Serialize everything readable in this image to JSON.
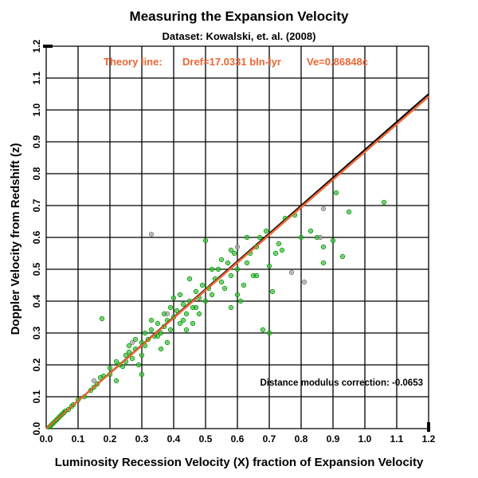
{
  "chart_data": {
    "type": "scatter",
    "title": "Measuring the Expansion Velocity",
    "subtitle": "Dataset:  Kowalski, et. al. (2008)",
    "xlabel": "Luminosity Recession Velocity (X) fraction of Expansion Velocity",
    "ylabel": "Doppler Velocity from Redshift (z)",
    "xlim": [
      0,
      1.2
    ],
    "ylim": [
      0,
      1.2
    ],
    "grid": true,
    "x_ticks": [
      "0.0",
      "0.1",
      "0.2",
      "0.3",
      "0.4",
      "0.5",
      "0.6",
      "0.7",
      "0.8",
      "0.9",
      "1.0",
      "1.1",
      "1.2"
    ],
    "y_ticks": [
      "0.0",
      "0.1",
      "0.2",
      "0.3",
      "0.4",
      "0.5",
      "0.6",
      "0.7",
      "0.8",
      "0.9",
      "1.0",
      "1.1",
      "1.2"
    ],
    "annotations": {
      "theory_label": "Theory line:",
      "dref": "Dref=17.0331 bln-lyr",
      "ve": "Ve=0.86848c",
      "correction": "Distance modulus correction:  -0.0653"
    },
    "lines": [
      {
        "name": "reference",
        "color": "#000000",
        "points": [
          [
            0,
            0
          ],
          [
            1.2,
            1.05
          ]
        ]
      },
      {
        "name": "theory",
        "color": "#ee6633",
        "points": [
          [
            0,
            0
          ],
          [
            1.2,
            1.042
          ]
        ]
      }
    ],
    "series": [
      {
        "name": "green",
        "color": "#00a000",
        "points": [
          [
            0.01,
            0.005
          ],
          [
            0.015,
            0.01
          ],
          [
            0.02,
            0.015
          ],
          [
            0.025,
            0.02
          ],
          [
            0.03,
            0.025
          ],
          [
            0.035,
            0.03
          ],
          [
            0.04,
            0.035
          ],
          [
            0.045,
            0.04
          ],
          [
            0.05,
            0.045
          ],
          [
            0.055,
            0.05
          ],
          [
            0.06,
            0.055
          ],
          [
            0.07,
            0.06
          ],
          [
            0.08,
            0.07
          ],
          [
            0.085,
            0.075
          ],
          [
            0.1,
            0.09
          ],
          [
            0.12,
            0.1
          ],
          [
            0.14,
            0.12
          ],
          [
            0.15,
            0.13
          ],
          [
            0.16,
            0.14
          ],
          [
            0.17,
            0.16
          ],
          [
            0.18,
            0.165
          ],
          [
            0.175,
            0.345
          ],
          [
            0.2,
            0.17
          ],
          [
            0.22,
            0.15
          ],
          [
            0.23,
            0.2
          ],
          [
            0.24,
            0.195
          ],
          [
            0.25,
            0.21
          ],
          [
            0.26,
            0.24
          ],
          [
            0.27,
            0.22
          ],
          [
            0.28,
            0.25
          ],
          [
            0.29,
            0.2
          ],
          [
            0.3,
            0.17
          ],
          [
            0.3,
            0.27
          ],
          [
            0.31,
            0.3
          ],
          [
            0.32,
            0.28
          ],
          [
            0.33,
            0.31
          ],
          [
            0.34,
            0.29
          ],
          [
            0.35,
            0.33
          ],
          [
            0.36,
            0.3
          ],
          [
            0.37,
            0.32
          ],
          [
            0.38,
            0.34
          ],
          [
            0.36,
            0.25
          ],
          [
            0.38,
            0.27
          ],
          [
            0.39,
            0.38
          ],
          [
            0.4,
            0.35
          ],
          [
            0.41,
            0.37
          ],
          [
            0.42,
            0.33
          ],
          [
            0.43,
            0.39
          ],
          [
            0.44,
            0.36
          ],
          [
            0.45,
            0.4
          ],
          [
            0.46,
            0.38
          ],
          [
            0.47,
            0.43
          ],
          [
            0.48,
            0.41
          ],
          [
            0.49,
            0.45
          ],
          [
            0.5,
            0.4
          ],
          [
            0.51,
            0.44
          ],
          [
            0.52,
            0.42
          ],
          [
            0.53,
            0.47
          ],
          [
            0.54,
            0.5
          ],
          [
            0.55,
            0.46
          ],
          [
            0.56,
            0.44
          ],
          [
            0.57,
            0.52
          ],
          [
            0.58,
            0.48
          ],
          [
            0.59,
            0.55
          ],
          [
            0.6,
            0.5
          ],
          [
            0.61,
            0.4
          ],
          [
            0.62,
            0.45
          ],
          [
            0.63,
            0.52
          ],
          [
            0.64,
            0.55
          ],
          [
            0.65,
            0.48
          ],
          [
            0.66,
            0.57
          ],
          [
            0.67,
            0.6
          ],
          [
            0.68,
            0.31
          ],
          [
            0.7,
            0.3
          ],
          [
            0.71,
            0.43
          ],
          [
            0.72,
            0.55
          ],
          [
            0.73,
            0.58
          ],
          [
            0.74,
            0.56
          ],
          [
            0.78,
            0.67
          ],
          [
            0.8,
            0.6
          ],
          [
            0.83,
            0.62
          ],
          [
            0.85,
            0.6
          ],
          [
            0.87,
            0.57
          ],
          [
            0.87,
            0.52
          ],
          [
            0.9,
            0.59
          ],
          [
            0.91,
            0.74
          ],
          [
            0.93,
            0.54
          ],
          [
            0.95,
            0.68
          ],
          [
            1.06,
            0.71
          ],
          [
            0.5,
            0.59
          ],
          [
            0.45,
            0.47
          ],
          [
            0.4,
            0.41
          ],
          [
            0.35,
            0.29
          ],
          [
            0.42,
            0.42
          ],
          [
            0.44,
            0.31
          ],
          [
            0.48,
            0.36
          ],
          [
            0.3,
            0.23
          ],
          [
            0.25,
            0.23
          ],
          [
            0.2,
            0.19
          ],
          [
            0.22,
            0.21
          ],
          [
            0.33,
            0.34
          ],
          [
            0.37,
            0.36
          ],
          [
            0.43,
            0.34
          ],
          [
            0.47,
            0.38
          ],
          [
            0.52,
            0.5
          ],
          [
            0.55,
            0.53
          ],
          [
            0.58,
            0.56
          ],
          [
            0.63,
            0.6
          ],
          [
            0.69,
            0.62
          ],
          [
            0.75,
            0.66
          ],
          [
            0.6,
            0.42
          ],
          [
            0.58,
            0.38
          ],
          [
            0.66,
            0.48
          ],
          [
            0.7,
            0.51
          ],
          [
            0.46,
            0.33
          ],
          [
            0.39,
            0.31
          ],
          [
            0.31,
            0.26
          ],
          [
            0.28,
            0.28
          ],
          [
            0.26,
            0.26
          ]
        ]
      },
      {
        "name": "grey",
        "color": "#808080",
        "points": [
          [
            0.33,
            0.61
          ],
          [
            0.87,
            0.69
          ],
          [
            0.86,
            0.6
          ],
          [
            0.81,
            0.46
          ],
          [
            0.77,
            0.49
          ],
          [
            0.6,
            0.57
          ],
          [
            0.27,
            0.27
          ],
          [
            0.15,
            0.15
          ],
          [
            0.38,
            0.36
          ]
        ]
      }
    ]
  }
}
